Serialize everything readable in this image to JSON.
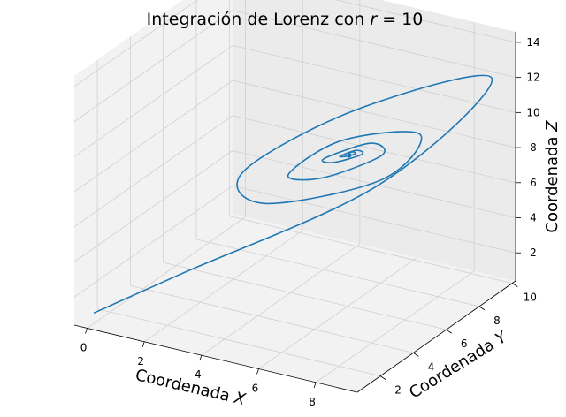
{
  "chart_data": {
    "type": "line",
    "projection": "3d",
    "title": "Integración de Lorenz con r = 10",
    "title_parts": {
      "prefix": "Integración de Lorenz con ",
      "variable": "r",
      "suffix": " = 10"
    },
    "xlabel": {
      "prefix": "Coordenada ",
      "variable": "X"
    },
    "ylabel": {
      "prefix": "Coordenada ",
      "variable": "Y"
    },
    "zlabel": {
      "prefix": "Coordenada ",
      "variable": "Z"
    },
    "x_ticks": [
      0,
      2,
      4,
      6,
      8
    ],
    "y_ticks": [
      2,
      4,
      6,
      8,
      10
    ],
    "z_ticks": [
      2,
      4,
      6,
      8,
      10,
      12,
      14
    ],
    "xlim": [
      -0.45,
      9.45
    ],
    "ylim": [
      0.6,
      10.2
    ],
    "zlim": [
      0.4,
      14.6
    ],
    "grid": true,
    "series": [
      {
        "color": "#1f77b4",
        "start": {
          "x": 0.0,
          "y": 1.0,
          "z": 1.0
        },
        "equilibrium": {
          "x": 6.0,
          "y": 6.0,
          "z": 9.0
        },
        "points_xyz": [
          [
            0.0,
            1.0,
            1.0
          ],
          [
            1.5,
            3.8,
            2.0
          ],
          [
            5.5,
            8.8,
            5.3
          ],
          [
            9.2,
            9.2,
            12.5
          ],
          [
            7.4,
            4.1,
            13.4
          ],
          [
            4.2,
            2.8,
            9.5
          ],
          [
            3.8,
            4.8,
            6.2
          ],
          [
            6.1,
            7.9,
            6.4
          ],
          [
            7.9,
            7.1,
            10.2
          ],
          [
            6.6,
            4.6,
            11.0
          ],
          [
            4.9,
            4.3,
            8.6
          ],
          [
            5.0,
            6.2,
            7.2
          ],
          [
            6.5,
            7.2,
            8.4
          ],
          [
            6.8,
            6.0,
            10.0
          ],
          [
            5.7,
            5.1,
            9.3
          ],
          [
            5.5,
            6.0,
            8.4
          ],
          [
            6.2,
            6.5,
            8.8
          ],
          [
            6.3,
            6.0,
            9.4
          ],
          [
            5.9,
            5.7,
            9.1
          ],
          [
            6.0,
            6.1,
            8.9
          ],
          [
            6.1,
            6.1,
            9.0
          ]
        ]
      }
    ]
  }
}
